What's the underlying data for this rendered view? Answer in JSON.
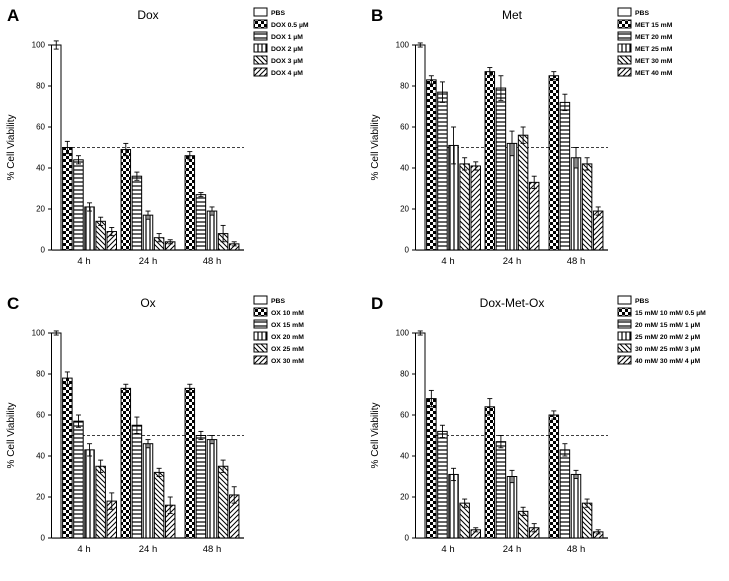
{
  "figure": {
    "background": "#ffffff",
    "ink_color": "#000000",
    "reference_line_style": "dashed"
  },
  "chart_data": [
    {
      "type": "bar",
      "panel_label": "A",
      "title": "Dox",
      "xlabel": "",
      "ylabel": "% Cell Viability",
      "categories": [
        "4 h",
        "24 h",
        "48 h"
      ],
      "ylim": [
        0,
        100
      ],
      "yticks": [
        0,
        20,
        40,
        60,
        80,
        100
      ],
      "reference_line_y": 50,
      "legend_position": "top-right",
      "series": [
        {
          "name": "PBS",
          "pattern": "open",
          "values": [
            100,
            null,
            null
          ],
          "errors": [
            2,
            null,
            null
          ]
        },
        {
          "name": "DOX 0.5 µM",
          "pattern": "checker",
          "values": [
            50,
            49,
            46
          ],
          "errors": [
            3,
            3,
            2
          ]
        },
        {
          "name": "DOX 1 µM",
          "pattern": "hlines",
          "values": [
            44,
            36,
            27
          ],
          "errors": [
            2,
            2,
            1
          ]
        },
        {
          "name": "DOX 2 µM",
          "pattern": "vlines",
          "values": [
            21,
            17,
            19
          ],
          "errors": [
            2,
            2,
            2
          ]
        },
        {
          "name": "DOX 3 µM",
          "pattern": "diag-back",
          "values": [
            14,
            6,
            8
          ],
          "errors": [
            2,
            2,
            4
          ]
        },
        {
          "name": "DOX 4 µM",
          "pattern": "diag-fwd",
          "values": [
            9,
            4,
            3
          ],
          "errors": [
            2,
            1,
            1
          ]
        }
      ]
    },
    {
      "type": "bar",
      "panel_label": "B",
      "title": "Met",
      "xlabel": "",
      "ylabel": "% Cell Viability",
      "categories": [
        "4 h",
        "24 h",
        "48 h"
      ],
      "ylim": [
        0,
        100
      ],
      "yticks": [
        0,
        20,
        40,
        60,
        80,
        100
      ],
      "reference_line_y": 50,
      "legend_position": "top-right",
      "series": [
        {
          "name": "PBS",
          "pattern": "open",
          "values": [
            100,
            null,
            null
          ],
          "errors": [
            1,
            null,
            null
          ]
        },
        {
          "name": "MET 15 mM",
          "pattern": "checker",
          "values": [
            83,
            87,
            85
          ],
          "errors": [
            2,
            2,
            2
          ]
        },
        {
          "name": "MET 20 mM",
          "pattern": "hlines",
          "values": [
            77,
            79,
            72
          ],
          "errors": [
            5,
            6,
            4
          ]
        },
        {
          "name": "MET 25 mM",
          "pattern": "vlines",
          "values": [
            51,
            52,
            45
          ],
          "errors": [
            9,
            6,
            5
          ]
        },
        {
          "name": "MET 30 mM",
          "pattern": "diag-back",
          "values": [
            42,
            56,
            42
          ],
          "errors": [
            3,
            4,
            3
          ]
        },
        {
          "name": "MET 40 mM",
          "pattern": "diag-fwd",
          "values": [
            41,
            33,
            19
          ],
          "errors": [
            2,
            3,
            2
          ]
        }
      ]
    },
    {
      "type": "bar",
      "panel_label": "C",
      "title": "Ox",
      "xlabel": "",
      "ylabel": "% Cell Viability",
      "categories": [
        "4 h",
        "24 h",
        "48 h"
      ],
      "ylim": [
        0,
        100
      ],
      "yticks": [
        0,
        20,
        40,
        60,
        80,
        100
      ],
      "reference_line_y": 50,
      "legend_position": "top-right",
      "series": [
        {
          "name": "PBS",
          "pattern": "open",
          "values": [
            100,
            null,
            null
          ],
          "errors": [
            1,
            null,
            null
          ]
        },
        {
          "name": "OX 10 mM",
          "pattern": "checker",
          "values": [
            78,
            73,
            73
          ],
          "errors": [
            3,
            2,
            2
          ]
        },
        {
          "name": "OX 15 mM",
          "pattern": "hlines",
          "values": [
            57,
            55,
            50
          ],
          "errors": [
            3,
            4,
            2
          ]
        },
        {
          "name": "OX 20 mM",
          "pattern": "vlines",
          "values": [
            43,
            46,
            48
          ],
          "errors": [
            3,
            2,
            2
          ]
        },
        {
          "name": "OX 25 mM",
          "pattern": "diag-back",
          "values": [
            35,
            32,
            35
          ],
          "errors": [
            3,
            2,
            3
          ]
        },
        {
          "name": "OX 30 mM",
          "pattern": "diag-fwd",
          "values": [
            18,
            16,
            21
          ],
          "errors": [
            4,
            4,
            4
          ]
        }
      ]
    },
    {
      "type": "bar",
      "panel_label": "D",
      "title": "Dox-Met-Ox",
      "xlabel": "",
      "ylabel": "% Cell Viability",
      "categories": [
        "4 h",
        "24 h",
        "48 h"
      ],
      "ylim": [
        0,
        100
      ],
      "yticks": [
        0,
        20,
        40,
        60,
        80,
        100
      ],
      "reference_line_y": 50,
      "legend_position": "top-right",
      "series": [
        {
          "name": "PBS",
          "pattern": "open",
          "values": [
            100,
            null,
            null
          ],
          "errors": [
            1,
            null,
            null
          ]
        },
        {
          "name": "15 mM/ 10 mM/ 0.5 µM",
          "pattern": "checker",
          "values": [
            68,
            64,
            60
          ],
          "errors": [
            4,
            4,
            2
          ]
        },
        {
          "name": "20 mM/ 15 mM/ 1 µM",
          "pattern": "hlines",
          "values": [
            52,
            47,
            43
          ],
          "errors": [
            3,
            3,
            3
          ]
        },
        {
          "name": "25 mM/ 20 mM/ 2 µM",
          "pattern": "vlines",
          "values": [
            31,
            30,
            31
          ],
          "errors": [
            3,
            3,
            2
          ]
        },
        {
          "name": "30 mM/ 25 mM/ 3 µM",
          "pattern": "diag-back",
          "values": [
            17,
            13,
            17
          ],
          "errors": [
            2,
            2,
            2
          ]
        },
        {
          "name": "40 mM/ 30 mM/ 4 µM",
          "pattern": "diag-fwd",
          "values": [
            4,
            5,
            3
          ],
          "errors": [
            1,
            2,
            1
          ]
        }
      ]
    }
  ]
}
